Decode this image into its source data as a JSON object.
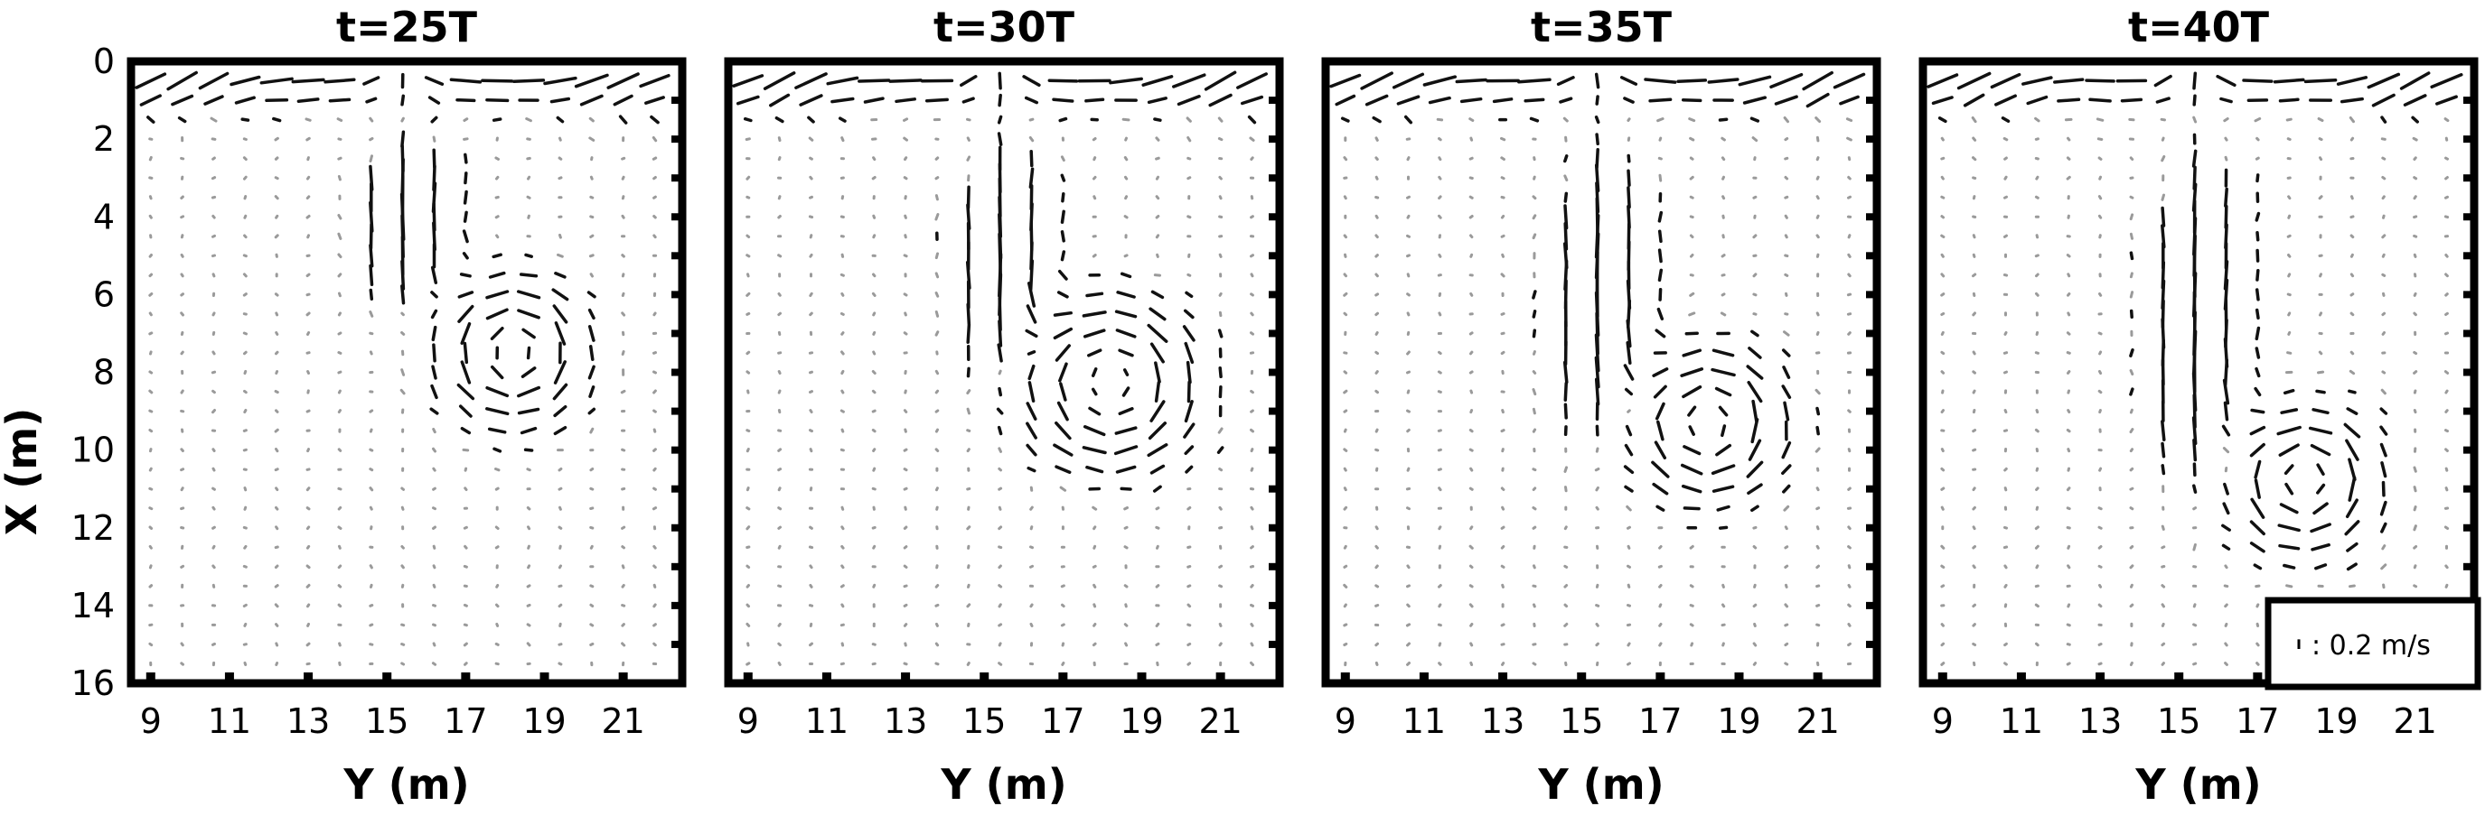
{
  "chart_data": {
    "type": "quiver",
    "xlabel": "Y (m)",
    "ylabel": "X (m)",
    "xlim": [
      8.5,
      22.5
    ],
    "ylim": [
      16,
      0
    ],
    "y_axis_inverted": true,
    "xticks": [
      9,
      11,
      13,
      15,
      17,
      19,
      21
    ],
    "yticks": [
      0,
      2,
      4,
      6,
      8,
      10,
      12,
      14,
      16
    ],
    "grid": false,
    "panels": [
      {
        "title": "t=25T"
      },
      {
        "title": "t=30T"
      },
      {
        "title": "t=35T"
      },
      {
        "title": "t=40T"
      }
    ],
    "scale_reference": {
      "label": ": 0.2 m/s",
      "speed_m_per_s": 0.2,
      "panel": "t=40T"
    }
  }
}
